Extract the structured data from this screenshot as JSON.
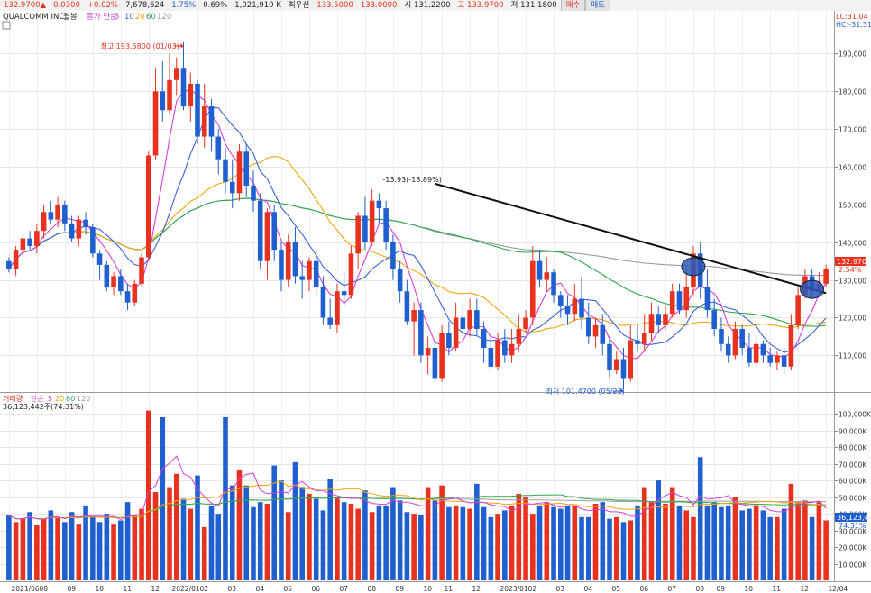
{
  "topbar": {
    "price": "132.9700▲",
    "change": "0.0300",
    "change_pct": "+0.02%",
    "volume": "7,678,624",
    "pct2": "1.75%",
    "pct3": "0.69%",
    "amount": "1,021,910 K",
    "pref_label": "최우선",
    "ask": "133.5000",
    "bid": "133.0000",
    "open": "시 131.2200",
    "high": "고 133.9700",
    "low": "저 131.1800",
    "buy_label": "매수",
    "sell_label": "매도"
  },
  "price_panel": {
    "title": "QUALCOMM INC",
    "subtitle": "월봉",
    "ma_label": "종가 단순",
    "ma_periods": [
      "5",
      "10",
      "20",
      "60",
      "120"
    ],
    "lc": "LC:31.04",
    "hc": "HC:-31.31",
    "current_price": "132.9700",
    "current_pct": "2.54%",
    "high_note": "최고 193.5800 (01/03)",
    "low_note": "최저 101.4700 (05/22)",
    "trend_note": "-13.93(-18.89%)"
  },
  "volume_panel": {
    "label": "거래량",
    "ma_label": "단순",
    "ma_periods": [
      "5",
      "20",
      "60",
      "120"
    ],
    "value": "36,123,442주(74.31%)",
    "current": "36,123,442",
    "current_pct": "74.31%"
  },
  "chart_data": {
    "type": "candlestick",
    "price_axis": {
      "ticks": [
        110000,
        120000,
        130000,
        140000,
        150000,
        160000,
        170000,
        180000,
        190000
      ],
      "labels": [
        "110,000",
        "120,000",
        "130,000",
        "140,000",
        "150,000",
        "160,000",
        "170,000",
        "180,000",
        "190,000"
      ],
      "range": [
        101000,
        198000
      ]
    },
    "volume_axis": {
      "ticks": [
        10000,
        20000,
        30000,
        40000,
        50000,
        60000,
        70000,
        80000,
        90000,
        100000
      ],
      "labels": [
        "10,000K",
        "20,000K",
        "30,000K",
        "40,000K",
        "50,000K",
        "60,000K",
        "70,000K",
        "80,000K",
        "90,000K",
        "100,000K"
      ],
      "range": [
        0,
        105000
      ]
    },
    "x_labels": [
      "2021/06",
      "08",
      "09",
      "10",
      "11",
      "12",
      "2022/01",
      "02",
      "03",
      "04",
      "05",
      "06",
      "07",
      "08",
      "09",
      "10",
      "11",
      "12",
      "2023/01",
      "02",
      "03",
      "04",
      "05",
      "06",
      "07",
      "08",
      "09",
      "10",
      "11",
      "12",
      "12/04"
    ],
    "candles": [
      [
        135,
        133,
        136,
        132
      ],
      [
        133,
        138,
        139,
        131
      ],
      [
        138,
        141,
        142,
        136
      ],
      [
        141,
        139,
        143,
        138
      ],
      [
        139,
        143,
        145,
        137
      ],
      [
        143,
        148,
        150,
        141
      ],
      [
        148,
        146,
        151,
        145
      ],
      [
        146,
        150,
        152,
        144
      ],
      [
        150,
        145,
        151,
        143
      ],
      [
        145,
        141,
        147,
        140
      ],
      [
        141,
        146,
        147,
        139
      ],
      [
        146,
        144,
        148,
        142
      ],
      [
        144,
        137,
        145,
        136
      ],
      [
        137,
        134,
        138,
        130
      ],
      [
        134,
        128,
        135,
        127
      ],
      [
        128,
        131,
        132,
        126
      ],
      [
        131,
        127,
        133,
        126
      ],
      [
        127,
        124,
        129,
        122
      ],
      [
        124,
        129,
        130,
        123
      ],
      [
        129,
        136,
        137,
        128
      ],
      [
        136,
        163,
        164,
        135
      ],
      [
        163,
        180,
        186,
        162
      ],
      [
        180,
        175,
        188,
        172
      ],
      [
        175,
        183,
        190,
        174
      ],
      [
        183,
        186,
        189,
        179
      ],
      [
        186,
        176,
        193,
        175
      ],
      [
        176,
        182,
        185,
        172
      ],
      [
        182,
        168,
        183,
        166
      ],
      [
        168,
        176,
        182,
        165
      ],
      [
        176,
        168,
        178,
        164
      ],
      [
        168,
        162,
        170,
        158
      ],
      [
        162,
        156,
        165,
        153
      ],
      [
        156,
        153,
        162,
        149
      ],
      [
        153,
        164,
        166,
        151
      ],
      [
        164,
        155,
        166,
        152
      ],
      [
        155,
        151,
        159,
        148
      ],
      [
        151,
        135,
        153,
        133
      ],
      [
        135,
        148,
        149,
        130
      ],
      [
        148,
        138,
        150,
        135
      ],
      [
        138,
        130,
        140,
        127
      ],
      [
        130,
        140,
        142,
        128
      ],
      [
        140,
        131,
        144,
        129
      ],
      [
        131,
        130,
        135,
        125
      ],
      [
        130,
        135,
        136,
        127
      ],
      [
        135,
        128,
        138,
        126
      ],
      [
        128,
        120,
        131,
        118
      ],
      [
        120,
        118,
        125,
        117
      ],
      [
        118,
        127,
        129,
        116
      ],
      [
        127,
        126,
        132,
        123
      ],
      [
        126,
        137,
        139,
        125
      ],
      [
        137,
        147,
        148,
        133
      ],
      [
        147,
        140,
        152,
        138
      ],
      [
        140,
        151,
        154,
        139
      ],
      [
        151,
        149,
        153,
        145
      ],
      [
        149,
        140,
        151,
        138
      ],
      [
        140,
        133,
        142,
        130
      ],
      [
        133,
        127,
        135,
        124
      ],
      [
        127,
        119,
        130,
        118
      ],
      [
        119,
        122,
        124,
        110
      ],
      [
        122,
        110,
        124,
        108
      ],
      [
        110,
        112,
        115,
        105
      ],
      [
        112,
        104,
        114,
        103
      ],
      [
        104,
        116,
        118,
        103
      ],
      [
        116,
        112,
        119,
        110
      ],
      [
        112,
        120,
        124,
        111
      ],
      [
        120,
        117,
        124,
        115
      ],
      [
        117,
        122,
        125,
        115
      ],
      [
        122,
        117,
        125,
        115
      ],
      [
        117,
        112,
        119,
        108
      ],
      [
        112,
        107,
        115,
        106
      ],
      [
        107,
        114,
        116,
        106
      ],
      [
        114,
        110,
        117,
        108
      ],
      [
        110,
        113,
        117,
        108
      ],
      [
        113,
        117,
        121,
        111
      ],
      [
        117,
        120,
        122,
        116
      ],
      [
        120,
        135,
        139,
        118
      ],
      [
        135,
        130,
        138,
        128
      ],
      [
        130,
        132,
        136,
        127
      ],
      [
        132,
        126,
        133,
        124
      ],
      [
        126,
        123,
        127,
        120
      ],
      [
        123,
        121,
        126,
        118
      ],
      [
        121,
        125,
        129,
        119
      ],
      [
        125,
        120,
        131,
        117
      ],
      [
        120,
        115,
        124,
        113
      ],
      [
        115,
        118,
        120,
        112
      ],
      [
        118,
        113,
        121,
        110
      ],
      [
        113,
        106,
        115,
        104
      ],
      [
        106,
        109,
        111,
        105
      ],
      [
        109,
        104,
        112,
        101
      ],
      [
        104,
        114,
        118,
        103
      ],
      [
        114,
        113,
        118,
        111
      ],
      [
        113,
        116,
        121,
        111
      ],
      [
        116,
        121,
        124,
        114
      ],
      [
        121,
        118,
        123,
        116
      ],
      [
        118,
        121,
        123,
        117
      ],
      [
        121,
        127,
        129,
        120
      ],
      [
        127,
        122,
        129,
        121
      ],
      [
        122,
        128,
        133,
        120
      ],
      [
        128,
        137,
        139,
        126
      ],
      [
        137,
        128,
        140,
        125
      ],
      [
        128,
        122,
        133,
        120
      ],
      [
        122,
        117,
        125,
        115
      ],
      [
        117,
        113,
        120,
        111
      ],
      [
        113,
        110,
        115,
        108
      ],
      [
        110,
        117,
        119,
        109
      ],
      [
        117,
        112,
        118,
        110
      ],
      [
        112,
        108,
        116,
        107
      ],
      [
        108,
        113,
        115,
        107
      ],
      [
        113,
        110,
        114,
        108
      ],
      [
        110,
        108,
        112,
        107
      ],
      [
        108,
        110,
        111,
        106
      ],
      [
        110,
        107,
        112,
        105
      ],
      [
        107,
        118,
        121,
        106
      ],
      [
        118,
        126,
        128,
        117
      ],
      [
        126,
        131,
        133,
        125
      ],
      [
        131,
        127,
        133,
        125
      ],
      [
        127,
        129,
        132,
        126
      ],
      [
        129,
        133,
        134,
        128
      ]
    ],
    "volumes": [
      39,
      35,
      37,
      41,
      33,
      37,
      42,
      38,
      35,
      41,
      34,
      45,
      38,
      35,
      40,
      34,
      36,
      47,
      39,
      43,
      102,
      53,
      98,
      56,
      64,
      49,
      43,
      63,
      32,
      45,
      40,
      98,
      57,
      66,
      57,
      44,
      47,
      46,
      69,
      60,
      41,
      71,
      56,
      52,
      49,
      42,
      61,
      50,
      47,
      46,
      43,
      54,
      41,
      45,
      45,
      56,
      48,
      41,
      40,
      39,
      56,
      48,
      57,
      44,
      45,
      44,
      43,
      58,
      44,
      38,
      40,
      42,
      45,
      52,
      50,
      40,
      45,
      47,
      44,
      43,
      45,
      45,
      38,
      38,
      46,
      47,
      37,
      38,
      35,
      36,
      45,
      56,
      47,
      60,
      46,
      56,
      45,
      42,
      38,
      74,
      45,
      47,
      44,
      45,
      50,
      42,
      43,
      45,
      42,
      38,
      38,
      43,
      58,
      47,
      48,
      38,
      47,
      36
    ],
    "annotations": {
      "trendline": {
        "from_index": 61,
        "from_value": 155.5,
        "to_index": 117,
        "to_value": 126.5
      },
      "ellipses": [
        {
          "index": 98,
          "value": 133.5
        },
        {
          "index": 115,
          "value": 127.5
        }
      ]
    },
    "ma_colors": {
      "ma5": "#d63fd6",
      "ma10": "#3a63d6",
      "ma20": "#f2a50c",
      "ma60": "#2ea84a",
      "ma120": "#9a9a9a"
    },
    "up_color": "#e8311f",
    "down_color": "#1f5fcf"
  }
}
